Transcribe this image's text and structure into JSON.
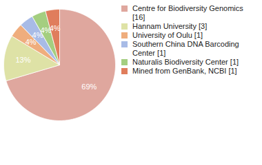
{
  "chart_data": {
    "type": "pie",
    "categories": [
      "Centre for Biodiversity Genomics [16]",
      "Hannam University [3]",
      "University of Oulu [1]",
      "Southern China DNA Barcoding Center [1]",
      "Naturalis Biodiversity Center [1]",
      "Mined from GenBank, NCBI [1]"
    ],
    "values": [
      69,
      13,
      4,
      4,
      4,
      4
    ],
    "value_labels": [
      "69%",
      "13%",
      "4%",
      "4%",
      "4%",
      "4%"
    ],
    "colors": [
      "#dfa79e",
      "#dee2a6",
      "#efad7d",
      "#a8bbe6",
      "#a4ce80",
      "#e07d5c"
    ],
    "data_labels": true,
    "legend": "right"
  }
}
